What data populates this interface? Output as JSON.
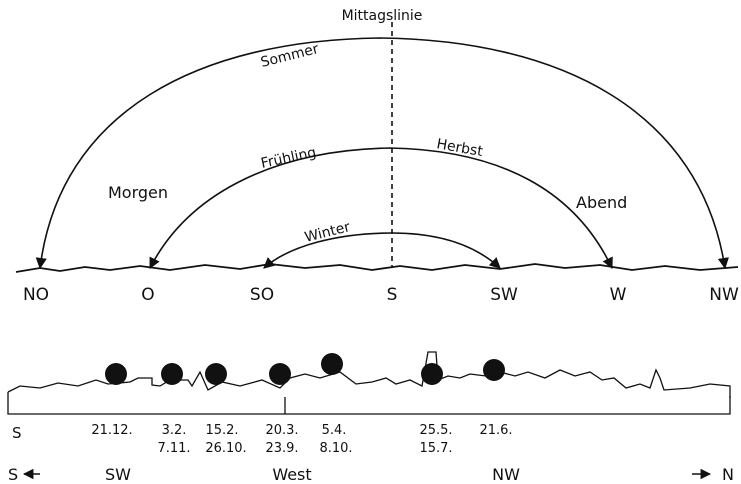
{
  "top": {
    "meridian_label": "Mittagslinie",
    "arcs": {
      "summer": "Sommer",
      "spring": "Frühling",
      "autumn": "Herbst",
      "winter": "Winter"
    },
    "time_labels": {
      "morning": "Morgen",
      "evening": "Abend"
    },
    "directions": [
      "NO",
      "O",
      "SO",
      "S",
      "SW",
      "W",
      "NW"
    ]
  },
  "bottom": {
    "left_label": "S",
    "dates": [
      {
        "line1": "21.12.",
        "line2": ""
      },
      {
        "line1": "3.2.",
        "line2": "7.11."
      },
      {
        "line1": "15.2.",
        "line2": "26.10."
      },
      {
        "line1": "20.3.",
        "line2": "23.9."
      },
      {
        "line1": "5.4.",
        "line2": "8.10."
      },
      {
        "line1": "25.5.",
        "line2": "15.7."
      },
      {
        "line1": "21.6.",
        "line2": ""
      }
    ],
    "compass": {
      "south": "S",
      "southwest": "SW",
      "west": "West",
      "northwest": "NW",
      "north": "N"
    }
  },
  "colors": {
    "ink": "#111111",
    "paper": "#ffffff"
  }
}
